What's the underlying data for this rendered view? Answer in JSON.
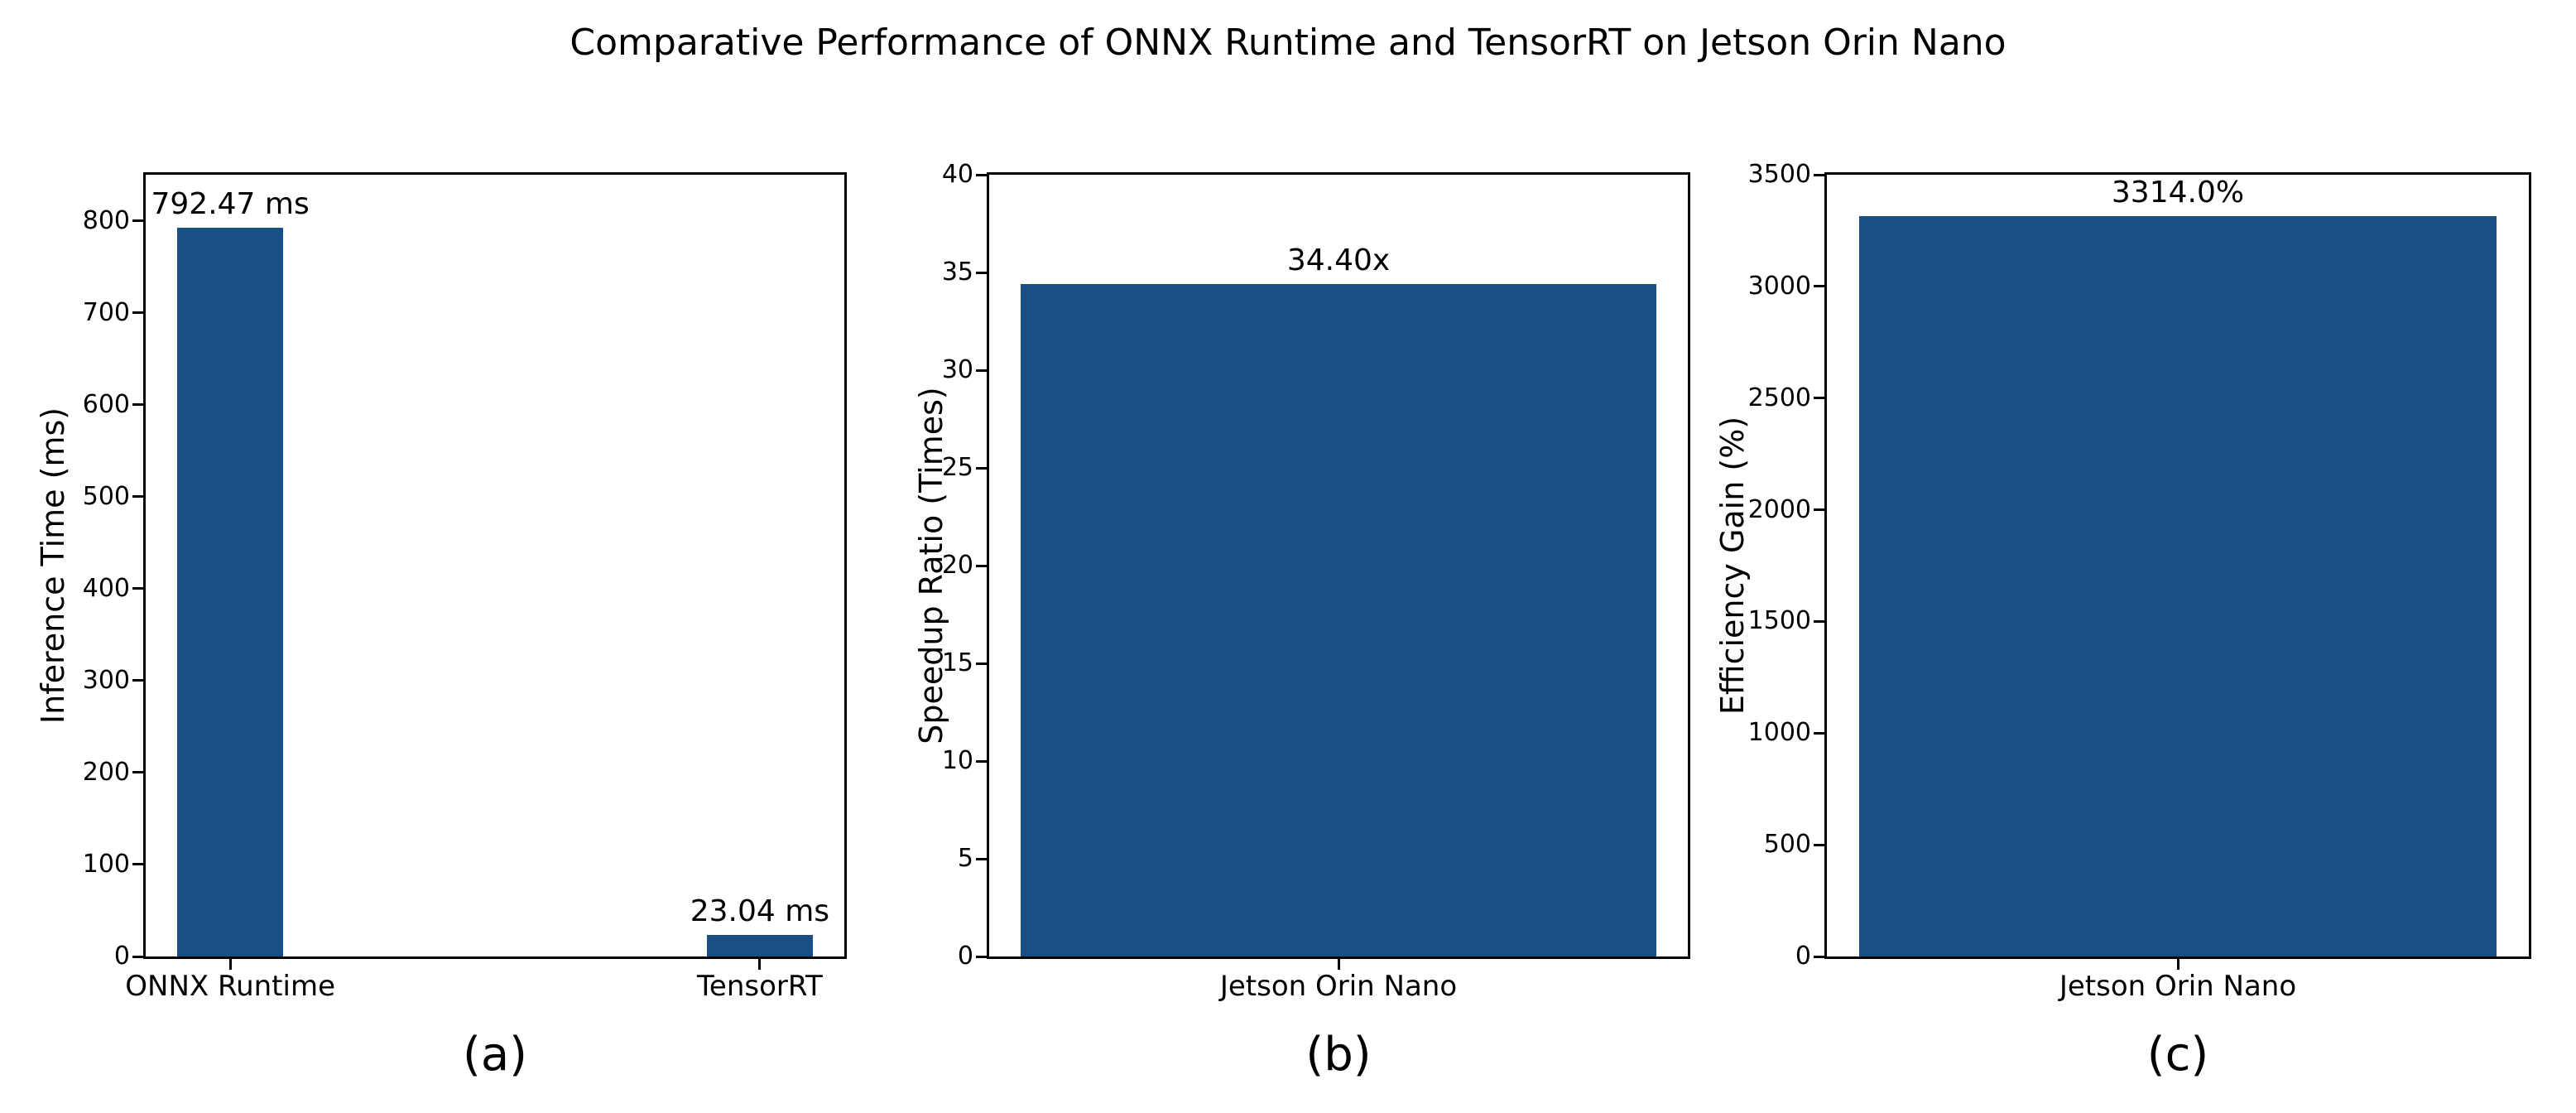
{
  "title": "Comparative Performance of ONNX Runtime and TensorRT on Jetson Orin Nano",
  "bar_color": "#174e84",
  "chart_data": [
    {
      "type": "bar",
      "panel_label": "(a)",
      "ylabel": "Inference Time (ms)",
      "ylim": [
        0,
        850
      ],
      "yticks": [
        0,
        100,
        200,
        300,
        400,
        500,
        600,
        700,
        800
      ],
      "categories": [
        "ONNX Runtime",
        "TensorRT"
      ],
      "values": [
        792.47,
        23.04
      ],
      "bar_labels": [
        "792.47 ms",
        "23.04 ms"
      ],
      "grid": false,
      "legend_position": "none"
    },
    {
      "type": "bar",
      "panel_label": "(b)",
      "ylabel": "Speedup Ratio (Times)",
      "ylim": [
        0,
        40
      ],
      "yticks": [
        0,
        5,
        10,
        15,
        20,
        25,
        30,
        35,
        40
      ],
      "categories": [
        "Jetson Orin Nano"
      ],
      "values": [
        34.4
      ],
      "bar_labels": [
        "34.40x"
      ],
      "grid": false,
      "legend_position": "none"
    },
    {
      "type": "bar",
      "panel_label": "(c)",
      "ylabel": "Efficiency Gain (%)",
      "ylim": [
        0,
        3500
      ],
      "yticks": [
        0,
        500,
        1000,
        1500,
        2000,
        2500,
        3000,
        3500
      ],
      "categories": [
        "Jetson Orin Nano"
      ],
      "values": [
        3314.0
      ],
      "bar_labels": [
        "3314.0%"
      ],
      "grid": false,
      "legend_position": "none"
    }
  ]
}
